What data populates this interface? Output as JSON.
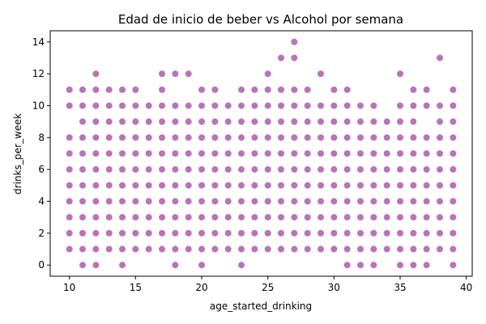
{
  "chart_data": {
    "type": "scatter",
    "title": "Edad de inicio de beber vs Alcohol por semana",
    "xlabel": "age_started_drinking",
    "ylabel": "drinks_per_week",
    "xlim": [
      8.55,
      40.45
    ],
    "ylim": [
      -0.7,
      14.7
    ],
    "xticks": [
      10,
      15,
      20,
      25,
      30,
      35,
      40
    ],
    "yticks": [
      0,
      2,
      4,
      6,
      8,
      10,
      12,
      14
    ],
    "grid": false,
    "marker_color": "#800080",
    "marker_alpha": 0.55,
    "series": [
      {
        "points": [
          [
            10,
            1
          ],
          [
            10,
            2
          ],
          [
            10,
            3
          ],
          [
            10,
            4
          ],
          [
            10,
            5
          ],
          [
            10,
            6
          ],
          [
            10,
            7
          ],
          [
            10,
            8
          ],
          [
            10,
            10
          ],
          [
            10,
            11
          ],
          [
            11,
            0
          ],
          [
            11,
            1
          ],
          [
            11,
            2
          ],
          [
            11,
            3
          ],
          [
            11,
            4
          ],
          [
            11,
            5
          ],
          [
            11,
            6
          ],
          [
            11,
            7
          ],
          [
            11,
            8
          ],
          [
            11,
            9
          ],
          [
            11,
            10
          ],
          [
            11,
            11
          ],
          [
            12,
            0
          ],
          [
            12,
            1
          ],
          [
            12,
            2
          ],
          [
            12,
            3
          ],
          [
            12,
            4
          ],
          [
            12,
            5
          ],
          [
            12,
            6
          ],
          [
            12,
            7
          ],
          [
            12,
            8
          ],
          [
            12,
            9
          ],
          [
            12,
            10
          ],
          [
            12,
            11
          ],
          [
            12,
            12
          ],
          [
            13,
            1
          ],
          [
            13,
            2
          ],
          [
            13,
            3
          ],
          [
            13,
            4
          ],
          [
            13,
            5
          ],
          [
            13,
            6
          ],
          [
            13,
            7
          ],
          [
            13,
            8
          ],
          [
            13,
            9
          ],
          [
            13,
            10
          ],
          [
            13,
            11
          ],
          [
            14,
            0
          ],
          [
            14,
            1
          ],
          [
            14,
            2
          ],
          [
            14,
            3
          ],
          [
            14,
            4
          ],
          [
            14,
            5
          ],
          [
            14,
            6
          ],
          [
            14,
            7
          ],
          [
            14,
            8
          ],
          [
            14,
            9
          ],
          [
            14,
            10
          ],
          [
            14,
            11
          ],
          [
            15,
            1
          ],
          [
            15,
            2
          ],
          [
            15,
            3
          ],
          [
            15,
            4
          ],
          [
            15,
            5
          ],
          [
            15,
            6
          ],
          [
            15,
            7
          ],
          [
            15,
            8
          ],
          [
            15,
            9
          ],
          [
            15,
            10
          ],
          [
            15,
            11
          ],
          [
            16,
            1
          ],
          [
            16,
            2
          ],
          [
            16,
            3
          ],
          [
            16,
            4
          ],
          [
            16,
            5
          ],
          [
            16,
            6
          ],
          [
            16,
            7
          ],
          [
            16,
            8
          ],
          [
            16,
            9
          ],
          [
            16,
            10
          ],
          [
            17,
            1
          ],
          [
            17,
            2
          ],
          [
            17,
            3
          ],
          [
            17,
            4
          ],
          [
            17,
            5
          ],
          [
            17,
            6
          ],
          [
            17,
            7
          ],
          [
            17,
            8
          ],
          [
            17,
            9
          ],
          [
            17,
            10
          ],
          [
            17,
            11
          ],
          [
            17,
            12
          ],
          [
            18,
            0
          ],
          [
            18,
            1
          ],
          [
            18,
            2
          ],
          [
            18,
            3
          ],
          [
            18,
            4
          ],
          [
            18,
            5
          ],
          [
            18,
            6
          ],
          [
            18,
            7
          ],
          [
            18,
            8
          ],
          [
            18,
            9
          ],
          [
            18,
            10
          ],
          [
            18,
            12
          ],
          [
            19,
            1
          ],
          [
            19,
            2
          ],
          [
            19,
            3
          ],
          [
            19,
            4
          ],
          [
            19,
            5
          ],
          [
            19,
            6
          ],
          [
            19,
            7
          ],
          [
            19,
            8
          ],
          [
            19,
            9
          ],
          [
            19,
            10
          ],
          [
            19,
            12
          ],
          [
            20,
            0
          ],
          [
            20,
            1
          ],
          [
            20,
            2
          ],
          [
            20,
            3
          ],
          [
            20,
            4
          ],
          [
            20,
            5
          ],
          [
            20,
            6
          ],
          [
            20,
            7
          ],
          [
            20,
            8
          ],
          [
            20,
            9
          ],
          [
            20,
            10
          ],
          [
            20,
            11
          ],
          [
            21,
            1
          ],
          [
            21,
            2
          ],
          [
            21,
            3
          ],
          [
            21,
            4
          ],
          [
            21,
            5
          ],
          [
            21,
            6
          ],
          [
            21,
            7
          ],
          [
            21,
            8
          ],
          [
            21,
            9
          ],
          [
            21,
            10
          ],
          [
            21,
            11
          ],
          [
            22,
            1
          ],
          [
            22,
            2
          ],
          [
            22,
            3
          ],
          [
            22,
            4
          ],
          [
            22,
            5
          ],
          [
            22,
            6
          ],
          [
            22,
            7
          ],
          [
            22,
            8
          ],
          [
            22,
            9
          ],
          [
            22,
            10
          ],
          [
            23,
            0
          ],
          [
            23,
            1
          ],
          [
            23,
            2
          ],
          [
            23,
            3
          ],
          [
            23,
            4
          ],
          [
            23,
            5
          ],
          [
            23,
            6
          ],
          [
            23,
            7
          ],
          [
            23,
            8
          ],
          [
            23,
            9
          ],
          [
            23,
            10
          ],
          [
            23,
            11
          ],
          [
            24,
            1
          ],
          [
            24,
            2
          ],
          [
            24,
            3
          ],
          [
            24,
            4
          ],
          [
            24,
            5
          ],
          [
            24,
            6
          ],
          [
            24,
            7
          ],
          [
            24,
            8
          ],
          [
            24,
            9
          ],
          [
            24,
            10
          ],
          [
            24,
            11
          ],
          [
            25,
            1
          ],
          [
            25,
            2
          ],
          [
            25,
            3
          ],
          [
            25,
            4
          ],
          [
            25,
            5
          ],
          [
            25,
            6
          ],
          [
            25,
            7
          ],
          [
            25,
            8
          ],
          [
            25,
            9
          ],
          [
            25,
            10
          ],
          [
            25,
            11
          ],
          [
            25,
            12
          ],
          [
            26,
            1
          ],
          [
            26,
            2
          ],
          [
            26,
            3
          ],
          [
            26,
            4
          ],
          [
            26,
            5
          ],
          [
            26,
            6
          ],
          [
            26,
            7
          ],
          [
            26,
            8
          ],
          [
            26,
            9
          ],
          [
            26,
            10
          ],
          [
            26,
            11
          ],
          [
            26,
            13
          ],
          [
            27,
            1
          ],
          [
            27,
            2
          ],
          [
            27,
            3
          ],
          [
            27,
            4
          ],
          [
            27,
            5
          ],
          [
            27,
            6
          ],
          [
            27,
            7
          ],
          [
            27,
            8
          ],
          [
            27,
            9
          ],
          [
            27,
            10
          ],
          [
            27,
            11
          ],
          [
            27,
            13
          ],
          [
            27,
            14
          ],
          [
            28,
            1
          ],
          [
            28,
            2
          ],
          [
            28,
            3
          ],
          [
            28,
            4
          ],
          [
            28,
            5
          ],
          [
            28,
            6
          ],
          [
            28,
            7
          ],
          [
            28,
            8
          ],
          [
            28,
            9
          ],
          [
            28,
            10
          ],
          [
            28,
            11
          ],
          [
            29,
            1
          ],
          [
            29,
            2
          ],
          [
            29,
            3
          ],
          [
            29,
            4
          ],
          [
            29,
            5
          ],
          [
            29,
            6
          ],
          [
            29,
            7
          ],
          [
            29,
            8
          ],
          [
            29,
            9
          ],
          [
            29,
            10
          ],
          [
            29,
            12
          ],
          [
            30,
            1
          ],
          [
            30,
            2
          ],
          [
            30,
            3
          ],
          [
            30,
            4
          ],
          [
            30,
            5
          ],
          [
            30,
            6
          ],
          [
            30,
            7
          ],
          [
            30,
            8
          ],
          [
            30,
            9
          ],
          [
            30,
            10
          ],
          [
            30,
            11
          ],
          [
            31,
            0
          ],
          [
            31,
            1
          ],
          [
            31,
            2
          ],
          [
            31,
            3
          ],
          [
            31,
            4
          ],
          [
            31,
            5
          ],
          [
            31,
            6
          ],
          [
            31,
            7
          ],
          [
            31,
            8
          ],
          [
            31,
            9
          ],
          [
            31,
            10
          ],
          [
            31,
            11
          ],
          [
            32,
            0
          ],
          [
            32,
            1
          ],
          [
            32,
            2
          ],
          [
            32,
            3
          ],
          [
            32,
            4
          ],
          [
            32,
            5
          ],
          [
            32,
            6
          ],
          [
            32,
            7
          ],
          [
            32,
            8
          ],
          [
            32,
            9
          ],
          [
            32,
            10
          ],
          [
            33,
            0
          ],
          [
            33,
            1
          ],
          [
            33,
            2
          ],
          [
            33,
            3
          ],
          [
            33,
            4
          ],
          [
            33,
            5
          ],
          [
            33,
            6
          ],
          [
            33,
            7
          ],
          [
            33,
            8
          ],
          [
            33,
            9
          ],
          [
            33,
            10
          ],
          [
            34,
            1
          ],
          [
            34,
            2
          ],
          [
            34,
            3
          ],
          [
            34,
            4
          ],
          [
            34,
            5
          ],
          [
            34,
            6
          ],
          [
            34,
            7
          ],
          [
            34,
            8
          ],
          [
            34,
            9
          ],
          [
            35,
            0
          ],
          [
            35,
            1
          ],
          [
            35,
            2
          ],
          [
            35,
            3
          ],
          [
            35,
            4
          ],
          [
            35,
            5
          ],
          [
            35,
            6
          ],
          [
            35,
            7
          ],
          [
            35,
            8
          ],
          [
            35,
            9
          ],
          [
            35,
            10
          ],
          [
            35,
            12
          ],
          [
            36,
            0
          ],
          [
            36,
            1
          ],
          [
            36,
            2
          ],
          [
            36,
            3
          ],
          [
            36,
            4
          ],
          [
            36,
            5
          ],
          [
            36,
            6
          ],
          [
            36,
            7
          ],
          [
            36,
            8
          ],
          [
            36,
            9
          ],
          [
            36,
            10
          ],
          [
            36,
            11
          ],
          [
            37,
            0
          ],
          [
            37,
            1
          ],
          [
            37,
            2
          ],
          [
            37,
            3
          ],
          [
            37,
            4
          ],
          [
            37,
            5
          ],
          [
            37,
            6
          ],
          [
            37,
            7
          ],
          [
            37,
            8
          ],
          [
            37,
            10
          ],
          [
            37,
            11
          ],
          [
            38,
            1
          ],
          [
            38,
            2
          ],
          [
            38,
            3
          ],
          [
            38,
            4
          ],
          [
            38,
            5
          ],
          [
            38,
            6
          ],
          [
            38,
            7
          ],
          [
            38,
            8
          ],
          [
            38,
            9
          ],
          [
            38,
            10
          ],
          [
            38,
            13
          ],
          [
            39,
            0
          ],
          [
            39,
            1
          ],
          [
            39,
            2
          ],
          [
            39,
            3
          ],
          [
            39,
            4
          ],
          [
            39,
            5
          ],
          [
            39,
            6
          ],
          [
            39,
            7
          ],
          [
            39,
            8
          ],
          [
            39,
            9
          ],
          [
            39,
            10
          ],
          [
            39,
            11
          ]
        ]
      }
    ]
  }
}
